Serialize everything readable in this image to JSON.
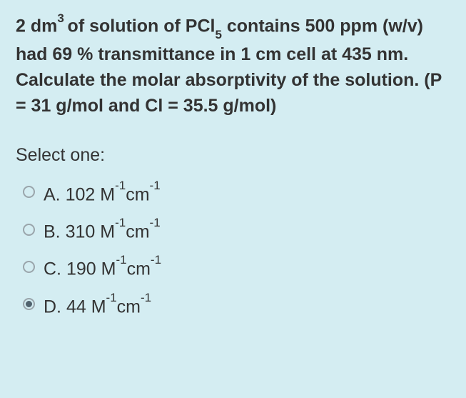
{
  "question": {
    "part1": "2 dm",
    "sup1": "3 ",
    "part2": " of solution of PCl",
    "sub1": "5",
    "part3": " contains 500 ppm (w/v) had  69 % transmittance in 1 cm cell at 435 nm. Calculate the molar absorptivity of the solution. (P = 31 g/mol and Cl = 35.5 g/mol)"
  },
  "prompt": "Select one:",
  "options": [
    {
      "letter": "A.",
      "value": "102",
      "unit1": "M",
      "exp1": "-1",
      "unit2": "cm",
      "exp2": "-1",
      "selected": false
    },
    {
      "letter": "B.",
      "value": "310",
      "unit1": "M",
      "exp1": "-1",
      "unit2": "cm",
      "exp2": "-1",
      "selected": false
    },
    {
      "letter": "C.",
      "value": "190",
      "unit1": "M",
      "exp1": "-1",
      "unit2": "cm",
      "exp2": "-1",
      "selected": false
    },
    {
      "letter": "D.",
      "value": "44",
      "unit1": "M",
      "exp1": "-1",
      "unit2": "cm",
      "exp2": "-1",
      "selected": true
    }
  ],
  "colors": {
    "background": "#d4edf2",
    "text": "#333333",
    "radio_border": "#9aa5ab",
    "radio_fill": "#50626d"
  },
  "typography": {
    "font_family": "Arial",
    "question_fontsize": 25,
    "question_weight": "bold",
    "prompt_fontsize": 25,
    "option_fontsize": 25,
    "superscript_fontsize": 17
  }
}
